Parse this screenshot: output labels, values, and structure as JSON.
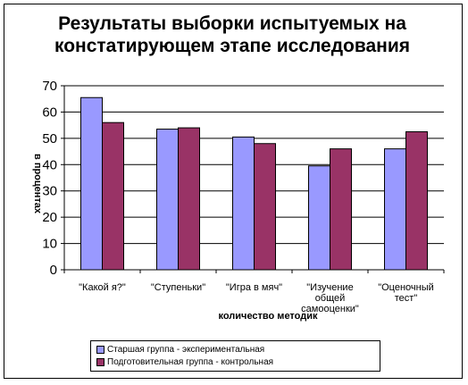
{
  "chart_data": {
    "type": "bar",
    "title": "Результаты выборки испытуемых на констатирующем этапе исследования",
    "xlabel": "количество методик",
    "ylabel": "в процентах",
    "ylim": [
      0,
      70
    ],
    "yticks": [
      "0",
      "10",
      "20",
      "30",
      "40",
      "50",
      "60",
      "70"
    ],
    "grid": true,
    "legend_position": "bottom",
    "categories": [
      [
        "\"Какой я?\""
      ],
      [
        "\"Ступеньки\""
      ],
      [
        "\"Игра в мяч\""
      ],
      [
        "\"Изучение",
        "общей",
        "самооценки\""
      ],
      [
        "\"Оценочный",
        "тест\""
      ]
    ],
    "series": [
      {
        "name": "Старшая группа - экспериментальная",
        "color": "#9999ff",
        "values": [
          65.5,
          53.5,
          50.5,
          39.5,
          46
        ]
      },
      {
        "name": "Подготовительная группа - контрольная",
        "color": "#993366",
        "values": [
          56,
          54,
          48,
          46,
          52.5
        ]
      }
    ]
  }
}
